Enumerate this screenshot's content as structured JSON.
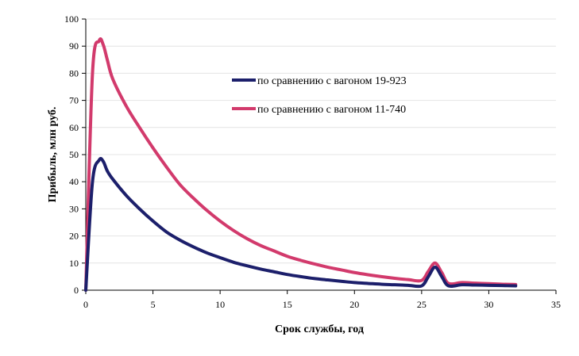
{
  "chart_data": {
    "type": "line",
    "title": "",
    "xlabel": "Срок службы, год",
    "ylabel": "Прибыль, млн руб.",
    "xlim": [
      0,
      35
    ],
    "ylim": [
      0,
      100
    ],
    "xticks": [
      0,
      5,
      10,
      15,
      20,
      25,
      30,
      35
    ],
    "yticks": [
      0,
      10,
      20,
      30,
      40,
      50,
      60,
      70,
      80,
      90,
      100
    ],
    "grid": true,
    "legend_position": "upper-right-center",
    "series": [
      {
        "name": "по сравнению с вагоном 19-923",
        "color": "#1c1f6b",
        "x": [
          0,
          0.5,
          1.0,
          1.3,
          1.6,
          2,
          3,
          4,
          5,
          6,
          7,
          8,
          9,
          10,
          11,
          12,
          13,
          14,
          15,
          16,
          17,
          18,
          19,
          20,
          21,
          22,
          23,
          24,
          25,
          25.5,
          26,
          26.5,
          27,
          28,
          29,
          30,
          31,
          32
        ],
        "y": [
          0,
          40,
          48,
          47.5,
          44,
          41,
          35,
          30,
          25.5,
          21.5,
          18.5,
          16,
          13.8,
          12,
          10.3,
          9,
          7.8,
          6.8,
          5.8,
          5,
          4.3,
          3.8,
          3.3,
          2.8,
          2.5,
          2.2,
          2.0,
          1.8,
          1.6,
          5,
          8.5,
          5,
          1.6,
          2.0,
          1.9,
          1.8,
          1.7,
          1.6
        ]
      },
      {
        "name": "по сравнению с вагоном 11-740",
        "color": "#d23a6c",
        "x": [
          0,
          0.5,
          1.0,
          1.3,
          1.6,
          2,
          3,
          4,
          5,
          6,
          7,
          8,
          9,
          10,
          11,
          12,
          13,
          14,
          15,
          16,
          17,
          18,
          19,
          20,
          21,
          22,
          23,
          24,
          25,
          25.5,
          26,
          26.5,
          27,
          28,
          29,
          30,
          31,
          32
        ],
        "y": [
          0,
          80,
          92,
          90.5,
          85,
          78,
          68,
          60,
          52.5,
          45.5,
          39,
          34,
          29.5,
          25.5,
          22,
          19,
          16.5,
          14.5,
          12.5,
          11,
          9.7,
          8.5,
          7.5,
          6.5,
          5.7,
          5,
          4.4,
          3.9,
          3.6,
          7,
          10,
          6.5,
          2.5,
          2.8,
          2.6,
          2.4,
          2.2,
          2.1
        ]
      }
    ]
  }
}
